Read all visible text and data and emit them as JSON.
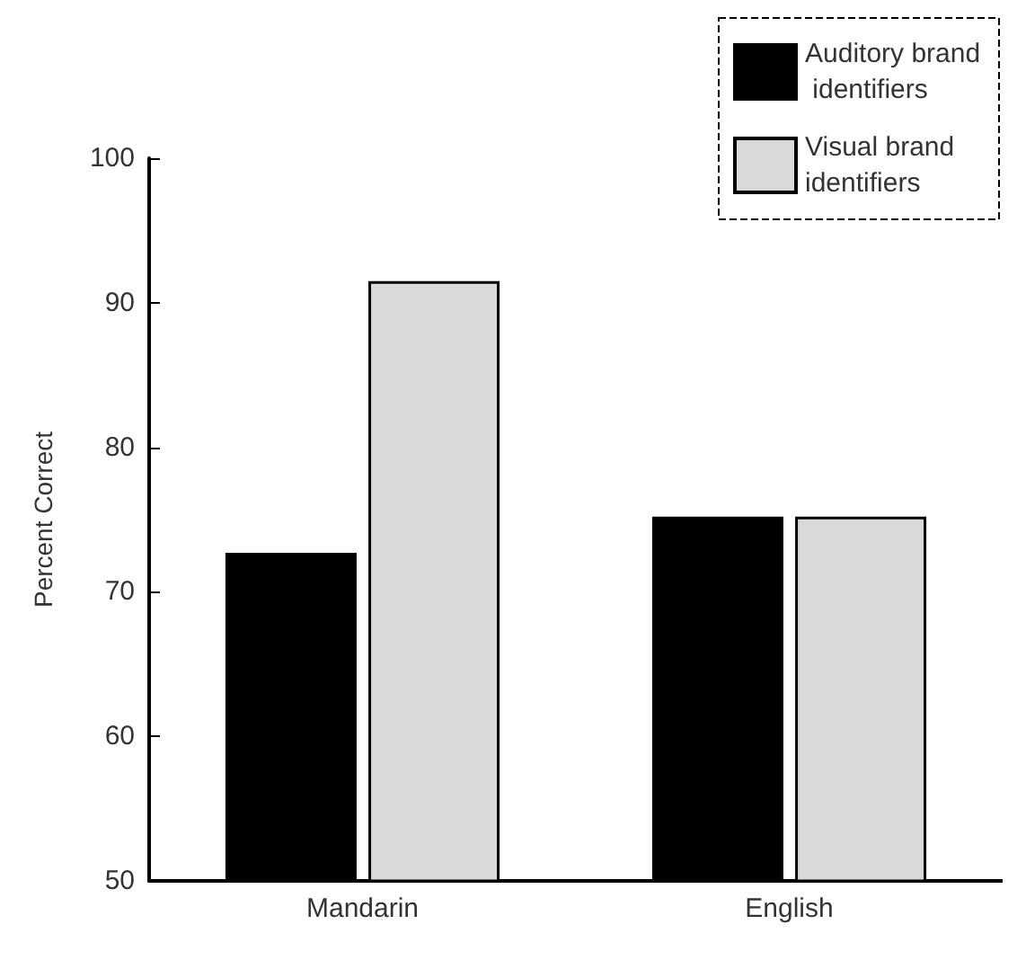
{
  "chart_data": {
    "type": "bar",
    "ylabel": "Percent Correct",
    "categories": [
      "Mandarin",
      "English"
    ],
    "series": [
      {
        "name": "Auditory brand identifiers",
        "color": "#000000",
        "values": [
          72.7,
          75.2
        ]
      },
      {
        "name": "Visual brand identifiers",
        "color": "#d9d9d9",
        "values": [
          91.5,
          75.2
        ]
      }
    ],
    "ylim": [
      50,
      100
    ],
    "yticks": [
      50,
      60,
      70,
      80,
      90,
      100
    ],
    "grid": false,
    "legend": "top right"
  }
}
